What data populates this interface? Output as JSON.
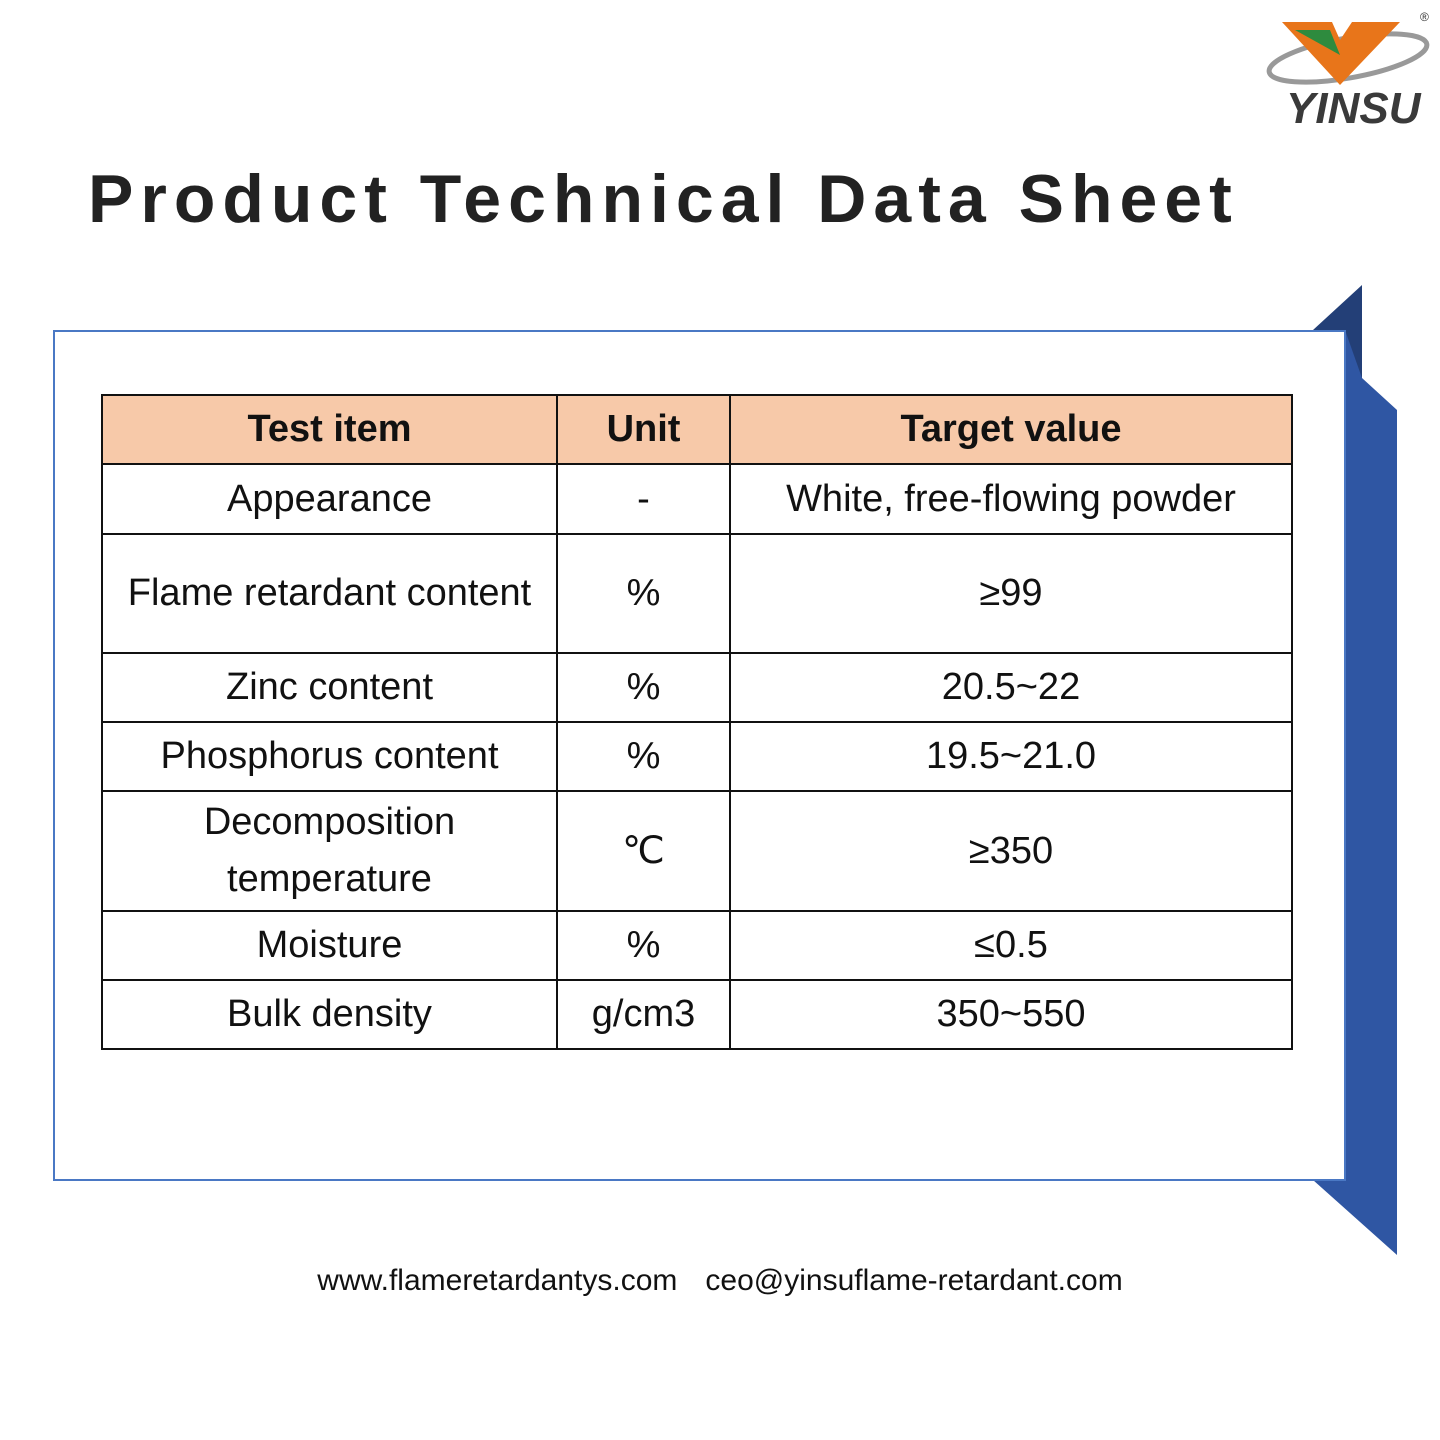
{
  "logo": {
    "name": "YINSU",
    "mark": "®"
  },
  "title": "Product Technical Data Sheet",
  "table": {
    "header": [
      "Test item",
      "Unit",
      "Target value"
    ],
    "rows": [
      [
        "Appearance",
        "-",
        "White, free-flowing powder"
      ],
      [
        "Flame retardant content",
        "%",
        "≥99"
      ],
      [
        "Zinc content",
        "%",
        "20.5~22"
      ],
      [
        "Phosphorus content",
        "%",
        "19.5~21.0"
      ],
      [
        "Decomposition temperature",
        "℃",
        "≥350"
      ],
      [
        "Moisture",
        "%",
        "≤0.5"
      ],
      [
        "Bulk density",
        "g/cm3",
        "350~550"
      ]
    ]
  },
  "footer": {
    "website": "www.flameretardantys.com",
    "email": "ceo@yinsuflame-retardant.com"
  }
}
